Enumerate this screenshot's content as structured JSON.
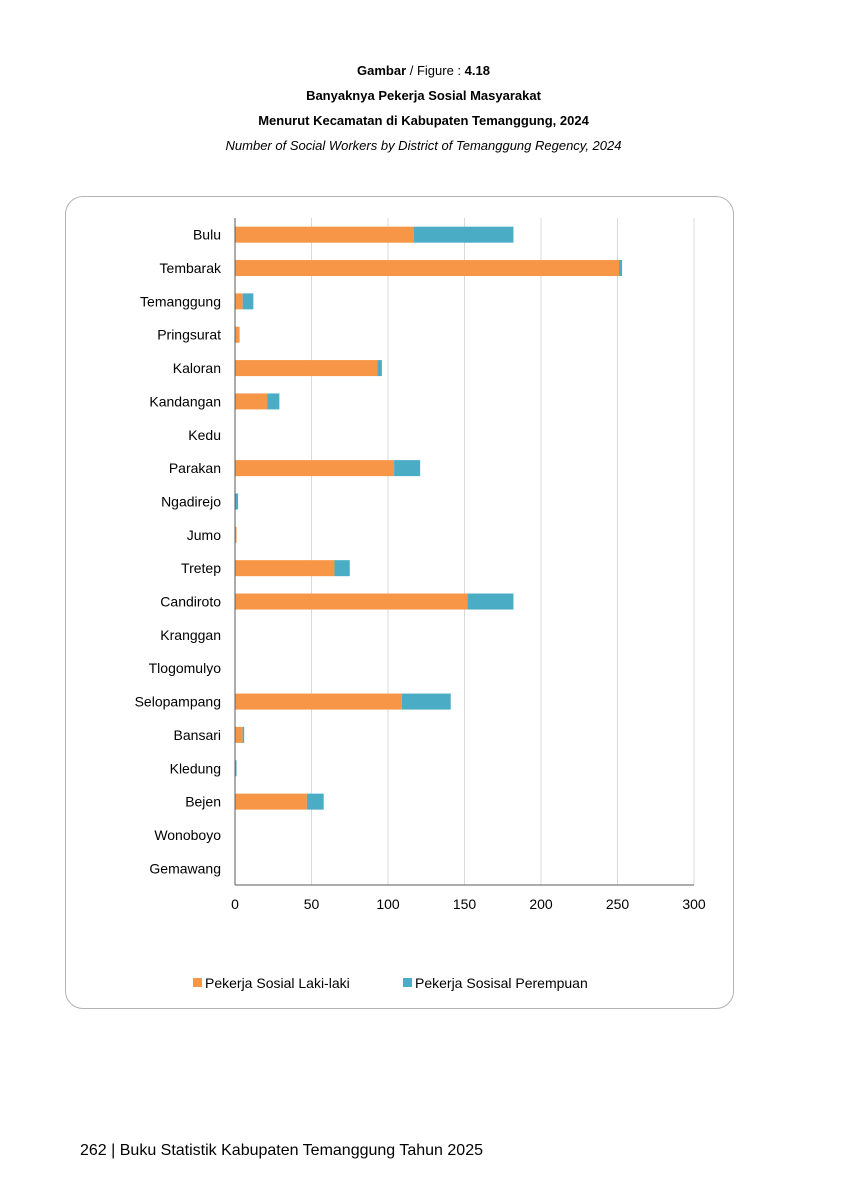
{
  "caption": {
    "figure_label": "Gambar",
    "figure_sep": " / Figure : ",
    "figure_number": "4.18",
    "title_line1": "Banyaknya Pekerja Sosial Masyarakat",
    "title_line2": "Menurut Kecamatan di Kabupaten Temanggung, 2024",
    "title_en": "Number of Social Workers by District of Temanggung Regency, 2024"
  },
  "footer": {
    "text": "262  | Buku Statistik Kabupaten Temanggung Tahun 2025"
  },
  "colors": {
    "male": "#f79646",
    "female": "#4bacc6",
    "grid": "#d9d9d9",
    "axis": "#595959"
  },
  "chart_data": {
    "type": "bar",
    "orientation": "horizontal",
    "stacked": true,
    "categories": [
      "Bulu",
      "Tembarak",
      "Temanggung",
      "Pringsurat",
      "Kaloran",
      "Kandangan",
      "Kedu",
      "Parakan",
      "Ngadirejo",
      "Jumo",
      "Tretep",
      "Candiroto",
      "Kranggan",
      "Tlogomulyo",
      "Selopampang",
      "Bansari",
      "Kledung",
      "Bejen",
      "Wonoboyo",
      "Gemawang"
    ],
    "series": [
      {
        "name": "Pekerja Sosial Laki-laki",
        "values": [
          117,
          251,
          5,
          3,
          93,
          21,
          0,
          104,
          0,
          1,
          65,
          152,
          0,
          0,
          109,
          5,
          0,
          47,
          0,
          0
        ]
      },
      {
        "name": "Pekerja Sosisal Perempuan",
        "values": [
          65,
          2,
          7,
          0,
          3,
          8,
          0,
          17,
          2,
          0,
          10,
          30,
          0,
          0,
          32,
          1,
          1,
          11,
          0,
          0
        ]
      }
    ],
    "xlim": [
      0,
      300
    ],
    "xticks": [
      0,
      50,
      100,
      150,
      200,
      250,
      300
    ],
    "grid": true,
    "legend_position": "bottom"
  }
}
